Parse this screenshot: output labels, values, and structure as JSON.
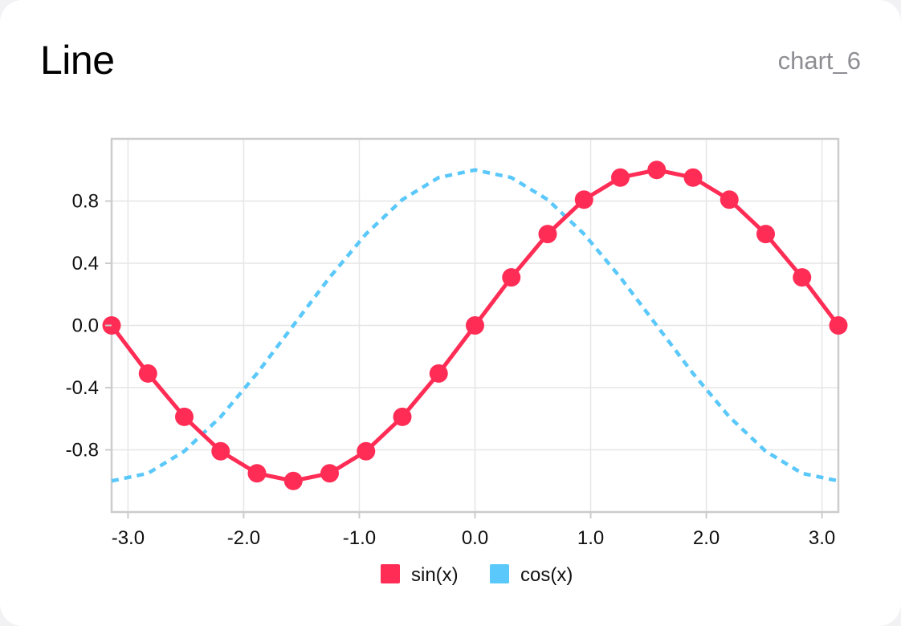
{
  "card": {
    "title": "Line",
    "chart_id": "chart_6"
  },
  "colors": {
    "sin": "#ff2d55",
    "cos": "#5ac8fa",
    "grid": "#e6e6e6",
    "frame": "#cccccc"
  },
  "chart_data": {
    "type": "line",
    "title": "",
    "xlabel": "",
    "ylabel": "",
    "xlim": [
      -3.14159,
      3.14159
    ],
    "ylim": [
      -1.2,
      1.2
    ],
    "x_ticks": [
      -3.0,
      -2.0,
      -1.0,
      0.0,
      1.0,
      2.0,
      3.0
    ],
    "x_tick_labels": [
      "-3.0",
      "-2.0",
      "-1.0",
      "0.0",
      "1.0",
      "2.0",
      "3.0"
    ],
    "y_ticks": [
      -0.8,
      -0.4,
      0.0,
      0.4,
      0.8
    ],
    "y_tick_labels": [
      "-0.8",
      "-0.4",
      "0.0",
      "0.4",
      "0.8"
    ],
    "grid": true,
    "legend_position": "bottom-center",
    "x": [
      -3.1416,
      -2.8274,
      -2.5133,
      -2.1991,
      -1.885,
      -1.5708,
      -1.2566,
      -0.9425,
      -0.6283,
      -0.3142,
      0.0,
      0.3142,
      0.6283,
      0.9425,
      1.2566,
      1.5708,
      1.885,
      2.1991,
      2.5133,
      2.8274,
      3.1416
    ],
    "series": [
      {
        "name": "sin(x)",
        "style": "solid-markers",
        "values": [
          0.0,
          -0.309,
          -0.588,
          -0.809,
          -0.951,
          -1.0,
          -0.951,
          -0.809,
          -0.588,
          -0.309,
          0.0,
          0.309,
          0.588,
          0.809,
          0.951,
          1.0,
          0.951,
          0.809,
          0.588,
          0.309,
          0.0
        ]
      },
      {
        "name": "cos(x)",
        "style": "dashed",
        "values": [
          -1.0,
          -0.951,
          -0.809,
          -0.588,
          -0.309,
          0.0,
          0.309,
          0.588,
          0.809,
          0.951,
          1.0,
          0.951,
          0.809,
          0.588,
          0.309,
          0.0,
          -0.309,
          -0.588,
          -0.809,
          -0.951,
          -1.0
        ]
      }
    ]
  }
}
